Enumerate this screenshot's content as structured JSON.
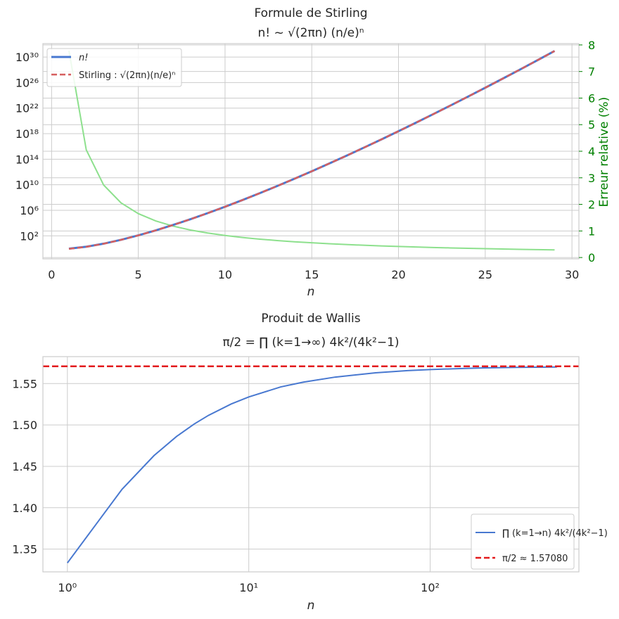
{
  "chart_data": [
    {
      "type": "line",
      "title": "Formule de Stirling",
      "subtitle": "n! ~ √(2πn) (n/e)ⁿ",
      "xlabel": "n",
      "ylabel_right": "Erreur relative (%)",
      "xlim": [
        -0.5,
        30.4
      ],
      "xticks": [
        0,
        5,
        10,
        15,
        20,
        25,
        30
      ],
      "ylim_log10": [
        -1.6,
        32.1
      ],
      "yticks": [
        "10²",
        "10⁶",
        "10¹⁰",
        "10¹⁴",
        "10¹⁸",
        "10²²",
        "10²⁶",
        "10³⁰"
      ],
      "ylim_right": [
        -0.05,
        8.05
      ],
      "yticks_right": [
        0,
        1,
        2,
        3,
        4,
        5,
        6,
        7,
        8
      ],
      "legend": {
        "placement": "top-left",
        "entries": [
          "n!",
          "Stirling : √(2πn)(n/e)ⁿ"
        ]
      },
      "x": [
        1,
        2,
        3,
        4,
        5,
        6,
        7,
        8,
        9,
        10,
        11,
        12,
        13,
        14,
        15,
        16,
        17,
        18,
        19,
        20,
        21,
        22,
        23,
        24,
        25,
        26,
        27,
        28,
        29
      ],
      "series": [
        {
          "name": "n!",
          "color": "#4878d0",
          "scale": "log",
          "values": [
            1,
            2,
            6,
            24,
            120,
            720,
            5040,
            40320,
            362880,
            3628800,
            39916800,
            479001600,
            6227020800,
            87178291200,
            1307674368000,
            20922789888000,
            355687428096000,
            6402373705728000,
            121645100408832000,
            2432902008176640000,
            51090942171709440000,
            1.1240007277776077e+21,
            2.585201673888498e+22,
            6.204484017332394e+23,
            1.5511210043330986e+25,
            4.0329146112660565e+26,
            1.0888869450418352e+28,
            3.0488834461171384e+29,
            8.841761993739701e+30
          ]
        },
        {
          "name": "Stirling : √(2πn)(n/e)ⁿ",
          "color": "#d65f5f",
          "scale": "log",
          "values": [
            0.922137,
            1.919004,
            5.83621,
            23.50618,
            118.0192,
            710.0782,
            4980.396,
            39902.4,
            359536.9,
            3598696,
            39615625,
            475687486,
            6187239475,
            86661001741,
            1300430722199,
            20814114667160,
            353948328666100,
            6372804626194300,
            121112786592294000,
            2422786846761133000,
            50888617325509650000,
            1.11983242482e+21,
            2.5758958492e+22,
            6.18331e+23,
            1.55596e+25,
            4.01964e+26,
            1.0855e+28,
            3.0398e+29,
            8.8164e+30
          ]
        },
        {
          "name": "Erreur relative (%)",
          "color": "#8de08d",
          "scale": "right",
          "values": [
            7.786,
            4.05,
            2.73,
            2.058,
            1.652,
            1.378,
            1.183,
            1.036,
            0.922,
            0.83,
            0.755,
            0.692,
            0.639,
            0.593,
            0.554,
            0.519,
            0.489,
            0.462,
            0.437,
            0.416,
            0.396,
            0.378,
            0.362,
            0.347,
            0.333,
            0.32,
            0.308,
            0.297,
            0.287
          ]
        }
      ]
    },
    {
      "type": "line",
      "title": "Produit de Wallis",
      "subtitle": "π/2 = ∏ (k=1→∞) 4k²/(4k²−1)",
      "xlabel": "n",
      "xscale": "log",
      "xlim_log10": [
        -0.135,
        2.82
      ],
      "xticks": [
        "10⁰",
        "10¹",
        "10²"
      ],
      "ylim": [
        1.3225,
        1.5825
      ],
      "yticks": [
        1.35,
        1.4,
        1.45,
        1.5,
        1.55
      ],
      "legend": {
        "placement": "bottom-right",
        "entries": [
          "∏ (k=1→n) 4k²/(4k²−1)",
          "π/2 ≈ 1.57080"
        ]
      },
      "reference_line": {
        "value": 1.5708,
        "label": "π/2 ≈ 1.57080",
        "color": "#e31a1c"
      },
      "series": [
        {
          "name": "∏ (k=1→n) 4k²/(4k²−1)",
          "color": "#4878d0",
          "x": [
            1,
            2,
            3,
            4,
            5,
            6,
            8,
            10,
            15,
            20,
            30,
            50,
            75,
            100,
            150,
            200,
            300,
            400,
            500
          ],
          "values": [
            1.3333,
            1.4222,
            1.4629,
            1.4861,
            1.5011,
            1.5116,
            1.5253,
            1.5338,
            1.5459,
            1.5517,
            1.5578,
            1.563,
            1.5656,
            1.5669,
            1.5682,
            1.5689,
            1.5695,
            1.5698,
            1.57
          ]
        }
      ]
    }
  ]
}
